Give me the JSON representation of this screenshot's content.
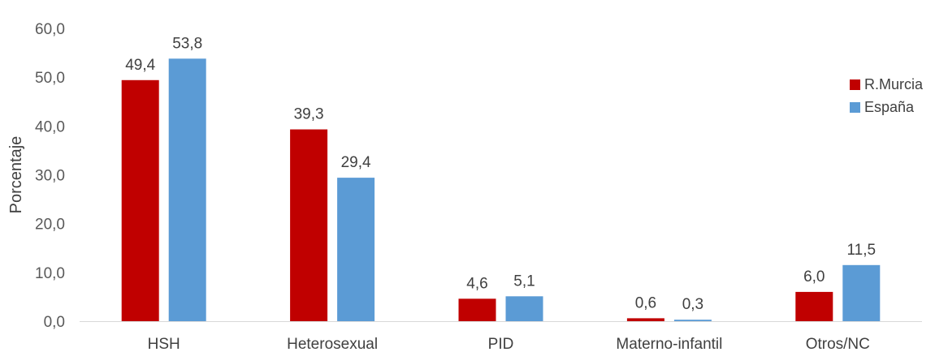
{
  "chart_data": {
    "type": "bar",
    "title": "",
    "xlabel": "",
    "ylabel": "Porcentaje",
    "ylim": [
      0,
      60
    ],
    "yticks": [
      "0,0",
      "10,0",
      "20,0",
      "30,0",
      "40,0",
      "50,0",
      "60,0"
    ],
    "categories": [
      "HSH",
      "Heterosexual",
      "PID",
      "Materno-infantil",
      "Otros/NC"
    ],
    "series": [
      {
        "name": "R.Murcia",
        "color": "#c00000",
        "values": [
          49.4,
          39.3,
          4.6,
          0.6,
          6.0
        ],
        "labels": [
          "49,4",
          "39,3",
          "4,6",
          "0,6",
          "6,0"
        ]
      },
      {
        "name": "España",
        "color": "#5b9bd5",
        "values": [
          53.8,
          29.4,
          5.1,
          0.3,
          11.5
        ],
        "labels": [
          "53,8",
          "29,4",
          "5,1",
          "0,3",
          "11,5"
        ]
      }
    ],
    "legend": "right",
    "grid": false
  }
}
